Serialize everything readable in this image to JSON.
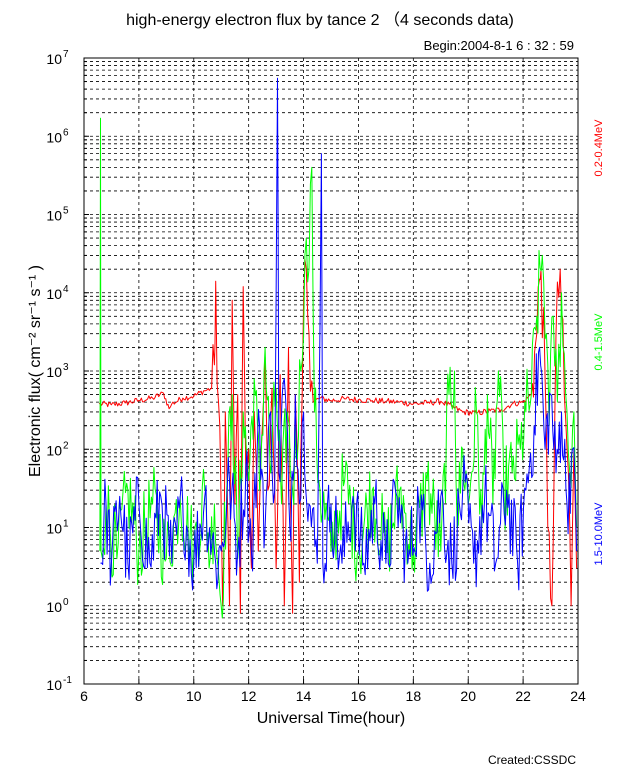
{
  "chart_data": {
    "type": "line",
    "title": "high-energy electron flux by tance 2 （4 seconds data)",
    "subtitle": "Begin:2004-8-1    6 : 32 : 59",
    "xlabel": "Universal Time(hour)",
    "ylabel": "Electronic flux( cm⁻² sr⁻¹ s⁻¹ )",
    "footer": "Created:CSSDC",
    "xlim": [
      6,
      24
    ],
    "xticks": [
      6,
      8,
      10,
      12,
      14,
      16,
      18,
      20,
      22,
      24
    ],
    "yscale": "log",
    "ylim": [
      0.1,
      10000000
    ],
    "yticks": [
      {
        "value": 0.1,
        "base": "10",
        "exp": "-1"
      },
      {
        "value": 1,
        "base": "10",
        "exp": "0"
      },
      {
        "value": 10,
        "base": "10",
        "exp": "1"
      },
      {
        "value": 100,
        "base": "10",
        "exp": "2"
      },
      {
        "value": 1000,
        "base": "10",
        "exp": "3"
      },
      {
        "value": 10000,
        "base": "10",
        "exp": "4"
      },
      {
        "value": 100000,
        "base": "10",
        "exp": "5"
      },
      {
        "value": 1000000,
        "base": "10",
        "exp": "6"
      },
      {
        "value": 10000000,
        "base": "10",
        "exp": "7"
      }
    ],
    "grid": true,
    "series": [
      {
        "name": "0.2-0.4MeV",
        "color": "#ff0000",
        "points": [
          [
            6.55,
            380
          ],
          [
            7.0,
            370
          ],
          [
            7.5,
            390
          ],
          [
            8.0,
            420
          ],
          [
            8.5,
            450
          ],
          [
            8.9,
            520
          ],
          [
            9.1,
            330
          ],
          [
            9.2,
            380
          ],
          [
            9.6,
            450
          ],
          [
            10.0,
            480
          ],
          [
            10.4,
            560
          ],
          [
            10.65,
            600
          ],
          [
            10.75,
            1200
          ],
          [
            10.8,
            14000
          ],
          [
            10.85,
            700
          ],
          [
            10.95,
            200
          ],
          [
            11.05,
            1.0
          ],
          [
            11.15,
            300
          ],
          [
            11.3,
            1.0
          ],
          [
            11.4,
            8000
          ],
          [
            11.5,
            20
          ],
          [
            11.6,
            500
          ],
          [
            11.7,
            0.8
          ],
          [
            11.8,
            12000
          ],
          [
            11.9,
            40
          ],
          [
            12.0,
            100
          ],
          [
            12.1,
            3
          ],
          [
            12.2,
            300
          ],
          [
            12.35,
            5
          ],
          [
            12.5,
            200
          ],
          [
            12.6,
            1500
          ],
          [
            12.7,
            30
          ],
          [
            12.85,
            600
          ],
          [
            13.0,
            3
          ],
          [
            13.15,
            900
          ],
          [
            13.3,
            1.0
          ],
          [
            13.45,
            2000
          ],
          [
            13.6,
            0.8
          ],
          [
            13.7,
            500
          ],
          [
            13.85,
            2
          ],
          [
            14.0,
            8000
          ],
          [
            14.1,
            20000
          ],
          [
            14.2,
            3000
          ],
          [
            14.35,
            400
          ],
          [
            14.6,
            450
          ],
          [
            15.0,
            420
          ],
          [
            15.5,
            440
          ],
          [
            16.0,
            430
          ],
          [
            16.5,
            420
          ],
          [
            17.0,
            410
          ],
          [
            17.5,
            400
          ],
          [
            18.0,
            380
          ],
          [
            18.5,
            390
          ],
          [
            19.0,
            410
          ],
          [
            19.4,
            350
          ],
          [
            19.8,
            300
          ],
          [
            20.3,
            290
          ],
          [
            20.8,
            310
          ],
          [
            21.2,
            320
          ],
          [
            21.6,
            380
          ],
          [
            22.0,
            400
          ],
          [
            22.3,
            500
          ],
          [
            22.5,
            3000
          ],
          [
            22.6,
            15000
          ],
          [
            22.65,
            20000
          ],
          [
            22.8,
            800
          ],
          [
            22.9,
            10
          ],
          [
            23.05,
            1.0
          ],
          [
            23.2,
            3000
          ],
          [
            23.35,
            20000
          ],
          [
            23.5,
            500
          ],
          [
            23.65,
            50
          ],
          [
            23.75,
            1.0
          ],
          [
            23.85,
            100
          ],
          [
            23.95,
            3
          ]
        ]
      },
      {
        "name": "0.4-1.5MeV",
        "color": "#00ff00",
        "points": [
          [
            6.58,
            5
          ],
          [
            6.6,
            1700000
          ],
          [
            6.62,
            5
          ],
          [
            6.8,
            20
          ],
          [
            7.2,
            4
          ],
          [
            7.6,
            30
          ],
          [
            8.0,
            5
          ],
          [
            8.5,
            20
          ],
          [
            9.0,
            4
          ],
          [
            9.5,
            25
          ],
          [
            10.0,
            5
          ],
          [
            10.4,
            30
          ],
          [
            10.6,
            4
          ],
          [
            10.75,
            20
          ],
          [
            11.0,
            1.0
          ],
          [
            11.2,
            30
          ],
          [
            11.4,
            500
          ],
          [
            11.6,
            4
          ],
          [
            11.8,
            300
          ],
          [
            12.0,
            40
          ],
          [
            12.2,
            800
          ],
          [
            12.4,
            30
          ],
          [
            12.6,
            2000
          ],
          [
            12.8,
            50
          ],
          [
            13.0,
            600
          ],
          [
            13.2,
            20
          ],
          [
            13.4,
            300
          ],
          [
            13.6,
            30
          ],
          [
            13.9,
            1000
          ],
          [
            14.05,
            30000
          ],
          [
            14.2,
            20000
          ],
          [
            14.3,
            400000
          ],
          [
            14.4,
            300
          ],
          [
            14.6,
            30
          ],
          [
            15.0,
            5
          ],
          [
            15.5,
            40
          ],
          [
            16.0,
            5
          ],
          [
            16.5,
            30
          ],
          [
            17.0,
            5
          ],
          [
            17.5,
            30
          ],
          [
            18.0,
            5
          ],
          [
            18.5,
            40
          ],
          [
            19.0,
            5
          ],
          [
            19.3,
            500
          ],
          [
            19.5,
            1000
          ],
          [
            19.6,
            10
          ],
          [
            19.8,
            100
          ],
          [
            20.0,
            20
          ],
          [
            20.3,
            300
          ],
          [
            20.5,
            10
          ],
          [
            20.7,
            500
          ],
          [
            20.9,
            20
          ],
          [
            21.1,
            1000
          ],
          [
            21.3,
            30
          ],
          [
            21.6,
            50
          ],
          [
            21.9,
            100
          ],
          [
            22.1,
            300
          ],
          [
            22.3,
            500
          ],
          [
            22.5,
            5000
          ],
          [
            22.7,
            30000
          ],
          [
            22.85,
            3000
          ],
          [
            22.95,
            200
          ],
          [
            23.1,
            5000
          ],
          [
            23.25,
            400
          ],
          [
            23.4,
            10000
          ],
          [
            23.55,
            500
          ],
          [
            23.7,
            50
          ],
          [
            23.85,
            300
          ],
          [
            23.95,
            10
          ]
        ]
      },
      {
        "name": "1.5-10.0MeV",
        "color": "#0000ff",
        "points": [
          [
            6.6,
            3.5
          ],
          [
            6.8,
            20
          ],
          [
            7.0,
            3.5
          ],
          [
            7.3,
            25
          ],
          [
            7.6,
            3.5
          ],
          [
            8.0,
            20
          ],
          [
            8.4,
            3.5
          ],
          [
            8.8,
            25
          ],
          [
            9.2,
            3.5
          ],
          [
            9.6,
            20
          ],
          [
            10.0,
            3.5
          ],
          [
            10.4,
            25
          ],
          [
            10.8,
            3.5
          ],
          [
            11.0,
            5
          ],
          [
            11.3,
            40
          ],
          [
            11.6,
            5
          ],
          [
            11.9,
            60
          ],
          [
            12.1,
            5
          ],
          [
            12.4,
            200
          ],
          [
            12.6,
            10
          ],
          [
            12.8,
            300
          ],
          [
            12.95,
            30
          ],
          [
            13.05,
            5500000
          ],
          [
            13.1,
            50
          ],
          [
            13.3,
            800
          ],
          [
            13.5,
            10
          ],
          [
            13.7,
            500
          ],
          [
            13.85,
            20
          ],
          [
            14.0,
            300
          ],
          [
            14.2,
            20
          ],
          [
            14.5,
            3.5
          ],
          [
            14.65,
            600000
          ],
          [
            14.7,
            3.5
          ],
          [
            15.0,
            20
          ],
          [
            15.4,
            3.5
          ],
          [
            15.8,
            25
          ],
          [
            16.2,
            3.5
          ],
          [
            16.6,
            20
          ],
          [
            17.0,
            3.5
          ],
          [
            17.4,
            25
          ],
          [
            17.8,
            3.5
          ],
          [
            18.2,
            20
          ],
          [
            18.6,
            3.5
          ],
          [
            19.0,
            25
          ],
          [
            19.4,
            3.5
          ],
          [
            19.8,
            30
          ],
          [
            20.2,
            3.5
          ],
          [
            20.6,
            25
          ],
          [
            21.0,
            3.5
          ],
          [
            21.4,
            30
          ],
          [
            21.8,
            3.5
          ],
          [
            22.1,
            30
          ],
          [
            22.4,
            200
          ],
          [
            22.6,
            2000
          ],
          [
            22.8,
            100
          ],
          [
            23.0,
            500
          ],
          [
            23.2,
            50
          ],
          [
            23.4,
            300
          ],
          [
            23.6,
            20
          ],
          [
            23.8,
            100
          ],
          [
            23.95,
            5
          ]
        ]
      }
    ]
  }
}
